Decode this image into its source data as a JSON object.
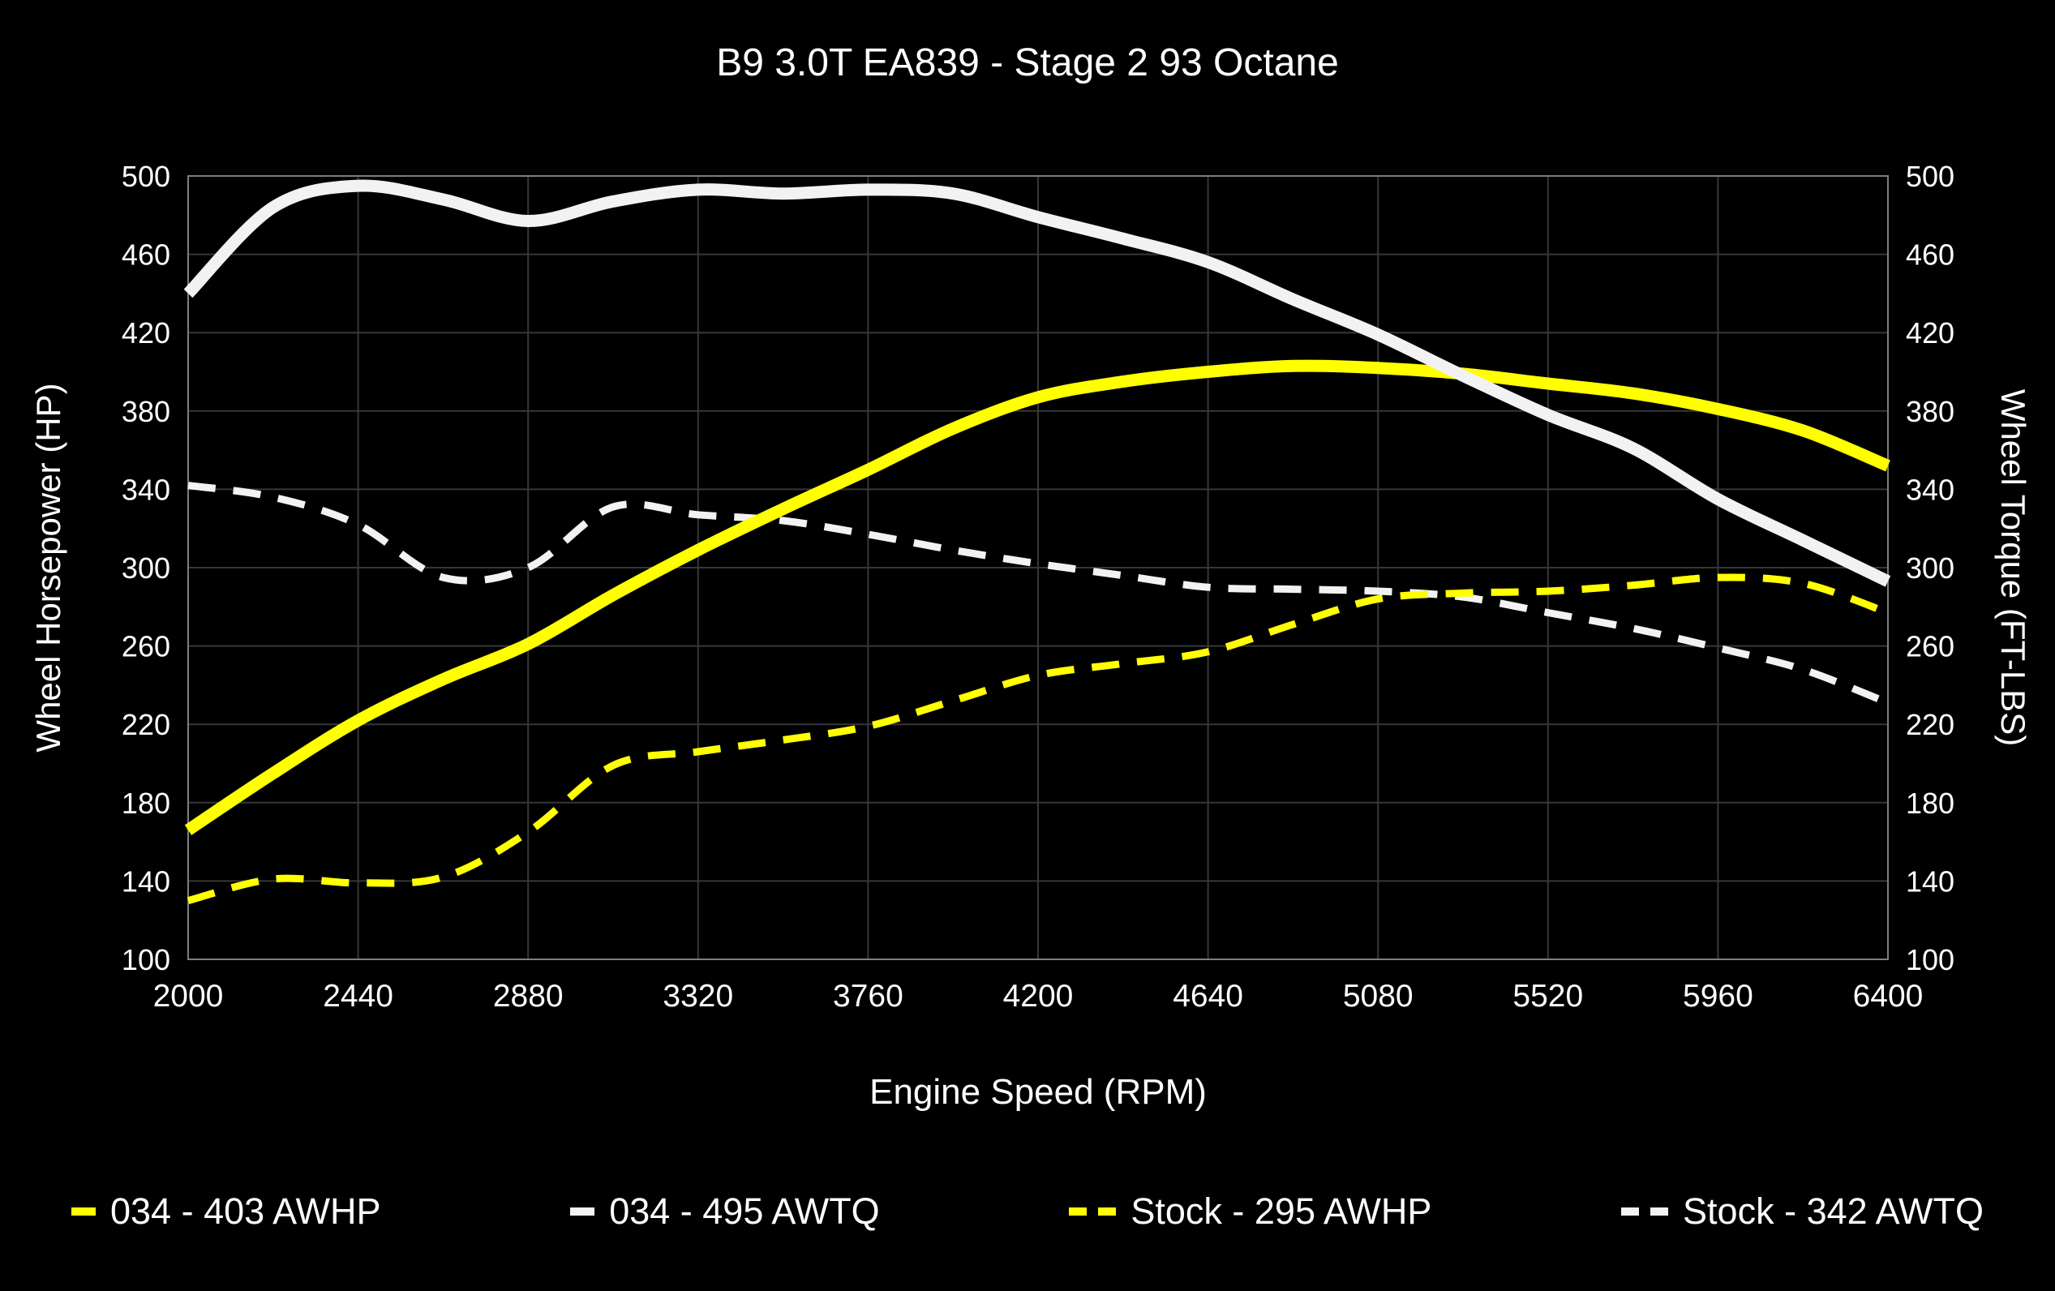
{
  "title": "B9 3.0T EA839 - Stage 2 93 Octane",
  "axes": {
    "x_label": "Engine Speed (RPM)",
    "y_left_label": "Wheel Horsepower (HP)",
    "y_right_label": "Wheel Torque (FT-LBS)",
    "x_min": 2000,
    "x_max": 6400,
    "y_min": 100,
    "y_max": 500,
    "x_ticks": [
      2000,
      2440,
      2880,
      3320,
      3760,
      4200,
      4640,
      5080,
      5520,
      5960,
      6400
    ],
    "y_ticks": [
      100,
      140,
      180,
      220,
      260,
      300,
      340,
      380,
      420,
      460,
      500
    ]
  },
  "colors": {
    "background": "#000000",
    "text": "#ffffff",
    "grid": "#373737",
    "border": "#7e7e7e",
    "yellow": "#ffff00",
    "white": "#f2f2f2"
  },
  "chart_data": {
    "type": "line",
    "title": "B9 3.0T EA839 - Stage 2 93 Octane",
    "xlabel": "Engine Speed (RPM)",
    "ylabel_left": "Wheel Horsepower (HP)",
    "ylabel_right": "Wheel Torque (FT-LBS)",
    "xlim": [
      2000,
      6400
    ],
    "ylim": [
      100,
      500
    ],
    "grid": true,
    "legend_position": "bottom",
    "x": [
      2000,
      2220,
      2440,
      2660,
      2880,
      3100,
      3320,
      3540,
      3760,
      3980,
      4200,
      4420,
      4640,
      4860,
      5080,
      5300,
      5520,
      5740,
      5960,
      6180,
      6400
    ],
    "series": [
      {
        "name": "034 - 403 AWHP",
        "color_key": "yellow",
        "line_style": "solid",
        "axis": "left",
        "values": [
          166,
          195,
          222,
          243,
          261,
          286,
          309,
          330,
          350,
          371,
          387,
          395,
          400,
          403,
          402,
          399,
          394,
          389,
          381,
          370,
          352
        ]
      },
      {
        "name": "034 - 495 AWTQ",
        "color_key": "white",
        "line_style": "solid",
        "axis": "right",
        "values": [
          440,
          484,
          495,
          488,
          477,
          487,
          493,
          491,
          493,
          491,
          479,
          468,
          456,
          437,
          419,
          398,
          378,
          361,
          335,
          314,
          293
        ]
      },
      {
        "name": "Stock - 295 AWHP",
        "color_key": "yellow",
        "line_style": "dashed",
        "axis": "left",
        "values": [
          130,
          141,
          139,
          142,
          165,
          199,
          206,
          212,
          219,
          232,
          245,
          251,
          257,
          271,
          284,
          287,
          288,
          291,
          295,
          292,
          277
        ]
      },
      {
        "name": "Stock - 342 AWTQ",
        "color_key": "white",
        "line_style": "dashed",
        "axis": "right",
        "values": [
          342,
          336,
          322,
          295,
          300,
          331,
          327,
          324,
          317,
          309,
          302,
          296,
          290,
          289,
          288,
          285,
          277,
          269,
          259,
          248,
          231
        ]
      }
    ],
    "draw_order": [
      3,
      2,
      0,
      1
    ]
  },
  "legend": {
    "items": [
      {
        "label": "034 - 403 AWHP",
        "marker": "yellow-solid"
      },
      {
        "label": "034 - 495 AWTQ",
        "marker": "white-solid"
      },
      {
        "label": "Stock - 295 AWHP",
        "marker": "yellow-dashed"
      },
      {
        "label": "Stock - 342 AWTQ",
        "marker": "white-dashed"
      }
    ]
  }
}
